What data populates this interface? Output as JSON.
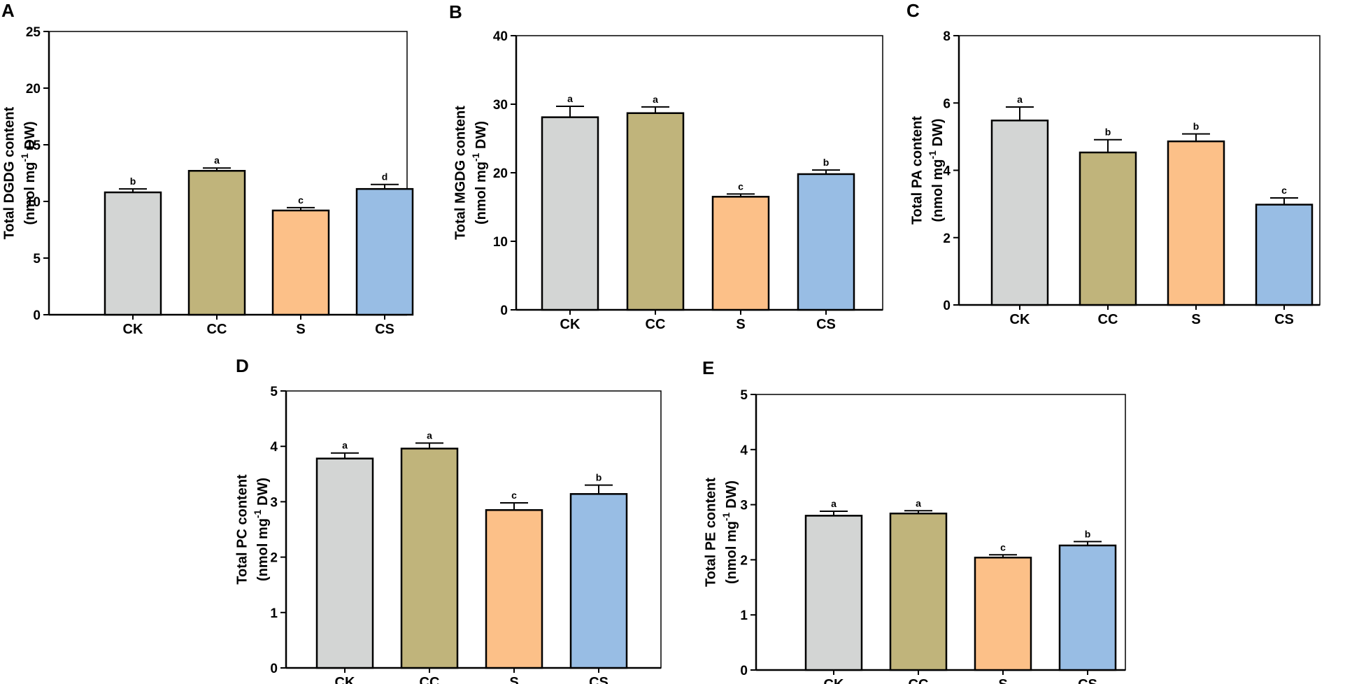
{
  "figure_title": "",
  "colors": {
    "CK": "#d3d5d4",
    "CC": "#c0b47b",
    "S": "#fcc088",
    "CS": "#98bde4",
    "axis": "#000000"
  },
  "chart_data": [
    {
      "panel": "A",
      "type": "bar",
      "categories": [
        "CK",
        "CC",
        "S",
        "CS"
      ],
      "values": [
        10.8,
        12.7,
        9.2,
        11.1
      ],
      "errors": [
        0.3,
        0.25,
        0.25,
        0.4
      ],
      "significance": [
        "b",
        "a",
        "c",
        "d"
      ],
      "ylabel_line1": "Total DGDG content",
      "ylabel_unit_pre": "(nmol mg",
      "ylabel_unit_sup": "-1",
      "ylabel_unit_post": " DW)",
      "ylim": [
        0,
        25
      ],
      "yticks": [
        0,
        5,
        10,
        15,
        20,
        25
      ]
    },
    {
      "panel": "B",
      "type": "bar",
      "categories": [
        "CK",
        "CC",
        "S",
        "CS"
      ],
      "values": [
        28.1,
        28.7,
        16.5,
        19.8
      ],
      "errors": [
        1.6,
        0.9,
        0.4,
        0.6
      ],
      "significance": [
        "a",
        "a",
        "c",
        "b"
      ],
      "ylabel_line1": "Total MGDG content",
      "ylabel_unit_pre": "(nmol mg",
      "ylabel_unit_sup": "-1",
      "ylabel_unit_post": " DW)",
      "ylim": [
        0,
        40
      ],
      "yticks": [
        0,
        10,
        20,
        30,
        40
      ]
    },
    {
      "panel": "C",
      "type": "bar",
      "categories": [
        "CK",
        "CC",
        "S",
        "CS"
      ],
      "values": [
        5.48,
        4.53,
        4.86,
        2.98
      ],
      "errors": [
        0.4,
        0.38,
        0.22,
        0.2
      ],
      "significance": [
        "a",
        "b",
        "b",
        "c"
      ],
      "ylabel_line1": "Total PA content",
      "ylabel_unit_pre": "(nmol mg",
      "ylabel_unit_sup": "-1",
      "ylabel_unit_post": " DW)",
      "ylim": [
        0,
        8
      ],
      "yticks": [
        0,
        2,
        4,
        6,
        8
      ]
    },
    {
      "panel": "D",
      "type": "bar",
      "categories": [
        "CK",
        "CC",
        "S",
        "CS"
      ],
      "values": [
        3.78,
        3.96,
        2.85,
        3.14
      ],
      "errors": [
        0.1,
        0.1,
        0.13,
        0.16
      ],
      "significance": [
        "a",
        "a",
        "c",
        "b"
      ],
      "ylabel_line1": "Total PC content",
      "ylabel_unit_pre": "(nmol mg",
      "ylabel_unit_sup": "-1",
      "ylabel_unit_post": " DW)",
      "ylim": [
        0,
        5
      ],
      "yticks": [
        0,
        1,
        2,
        3,
        4,
        5
      ]
    },
    {
      "panel": "E",
      "type": "bar",
      "categories": [
        "CK",
        "CC",
        "S",
        "CS"
      ],
      "values": [
        2.8,
        2.84,
        2.04,
        2.26
      ],
      "errors": [
        0.08,
        0.05,
        0.05,
        0.07
      ],
      "significance": [
        "a",
        "a",
        "c",
        "b"
      ],
      "ylabel_line1": "Total PE content",
      "ylabel_unit_pre": "(nmol mg",
      "ylabel_unit_sup": "-1",
      "ylabel_unit_post": " DW)",
      "ylim": [
        0,
        5
      ],
      "yticks": [
        0,
        1,
        2,
        3,
        4,
        5
      ]
    }
  ]
}
